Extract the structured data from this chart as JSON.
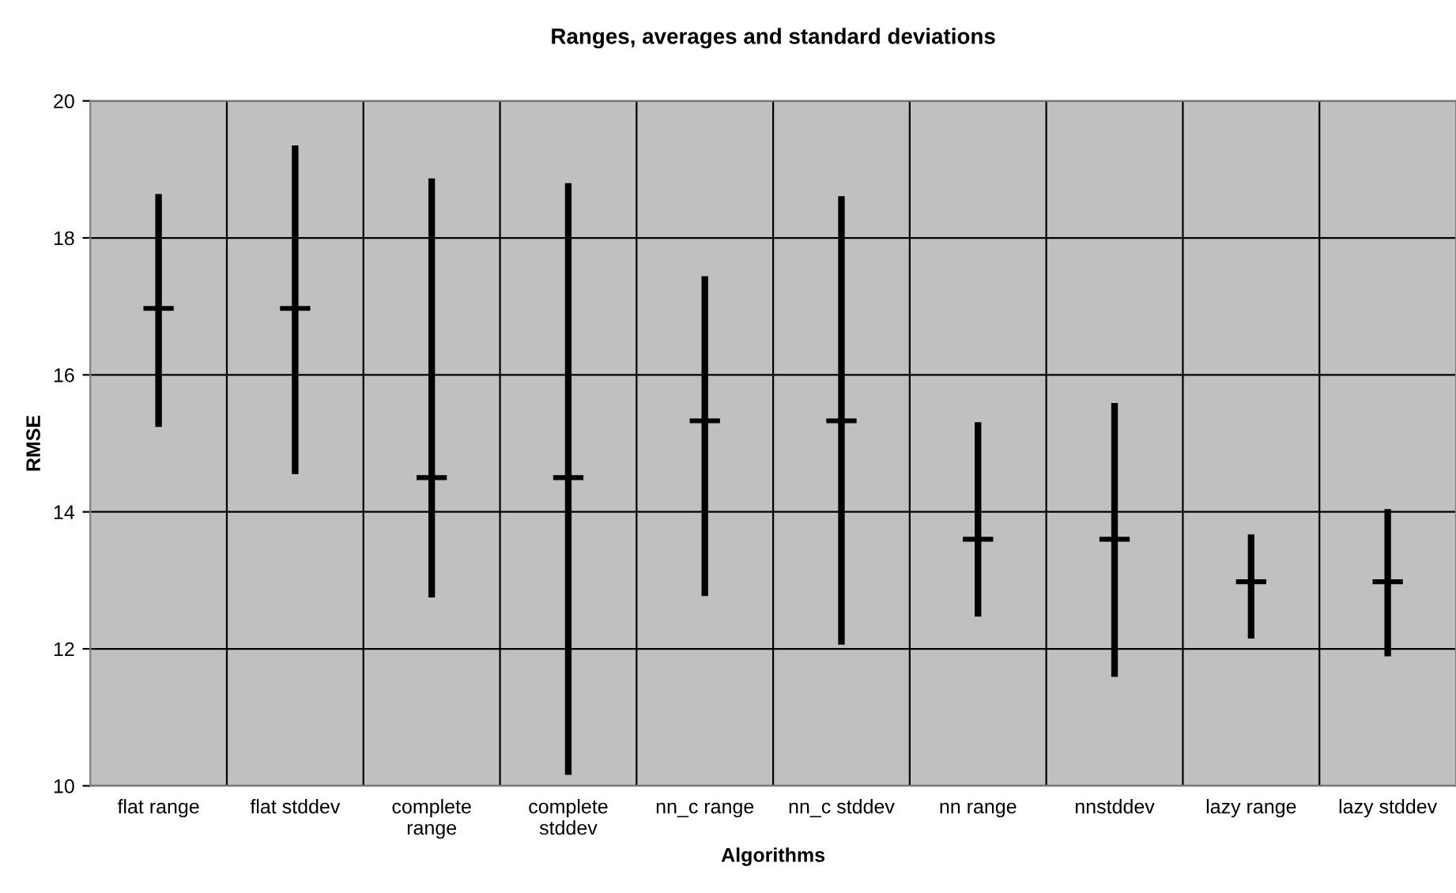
{
  "chart_data": {
    "type": "scatter",
    "title": "Ranges, averages and standard deviations",
    "xlabel": "Algorithms",
    "ylabel": "RMSE",
    "categories": [
      "flat range",
      "flat stddev",
      "complete\nrange",
      "complete\nstddev",
      "nn_c range",
      "nn_c stddev",
      "nn range",
      "nnstddev",
      "lazy range",
      "lazy stddev"
    ],
    "series": [
      {
        "color": "#000000",
        "values": [
          16.97,
          16.97,
          14.5,
          14.5,
          15.33,
          15.33,
          13.6,
          13.6,
          12.98,
          12.98
        ],
        "errors": [
          [
            15.24,
            18.64
          ],
          [
            14.55,
            19.35
          ],
          [
            12.75,
            18.87
          ],
          [
            10.16,
            18.8
          ],
          [
            12.77,
            17.44
          ],
          [
            12.06,
            18.61
          ],
          [
            12.47,
            15.31
          ],
          [
            11.59,
            15.59
          ],
          [
            12.15,
            13.67
          ],
          [
            11.89,
            14.04
          ]
        ]
      }
    ],
    "ylim": [
      10,
      20
    ],
    "yticks": [
      10,
      12,
      14,
      16,
      18,
      20
    ],
    "grid": true,
    "legend": false,
    "marker": "cross"
  }
}
